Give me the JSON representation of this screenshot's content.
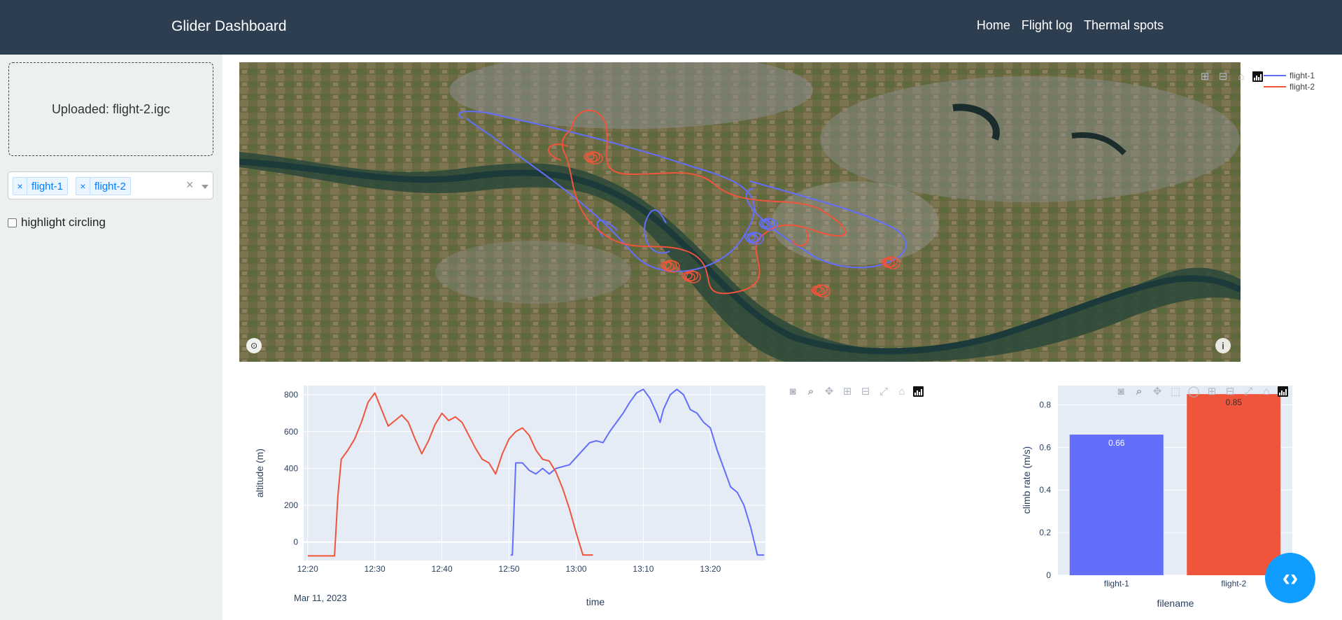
{
  "navbar": {
    "brand": "Glider Dashboard",
    "links": [
      "Home",
      "Flight log",
      "Thermal spots"
    ]
  },
  "sidebar": {
    "upload_text": "Uploaded: flight-2.igc",
    "selected_flights": [
      "flight-1",
      "flight-2"
    ],
    "clear_glyph": "×",
    "remove_glyph": "×",
    "highlight_label": "highlight circling",
    "highlight_checked": false
  },
  "map": {
    "legend": [
      "flight-1",
      "flight-2"
    ],
    "info_glyph": "i"
  },
  "colors": {
    "flight_1": "#636efa",
    "flight_2": "#ef553b",
    "navbar": "#2c3e50",
    "sidebar": "#ecf0f1",
    "plot_bg": "#e5ecf6"
  },
  "icons": [
    "camera-icon",
    "zoom-icon",
    "pan-icon",
    "zoom-in-icon",
    "zoom-out-icon",
    "autoscale-icon",
    "home-icon",
    "plotly-logo-icon",
    "select-box-icon",
    "lasso-icon"
  ],
  "altitude_chart": {
    "ylabel": "altitude (m)",
    "xlabel": "time",
    "x_date_label": "Mar 11, 2023",
    "x_ticks": [
      "12:20",
      "12:30",
      "12:40",
      "12:50",
      "13:00",
      "13:10",
      "13:20"
    ],
    "y_ticks": [
      "800",
      "600",
      "400",
      "200",
      "0"
    ]
  },
  "chart_data": [
    {
      "type": "line",
      "xlabel": "time",
      "ylabel": "altitude (m)",
      "x_range": [
        "2023-03-11 12:20",
        "2023-03-11 13:28"
      ],
      "ylim": [
        -100,
        850
      ],
      "series": [
        {
          "name": "flight-1",
          "x": [
            "12:50:15",
            "12:50:30",
            "12:51:00",
            "12:52:00",
            "12:53:00",
            "12:54:00",
            "12:55:00",
            "12:56:00",
            "12:57:00",
            "12:58:00",
            "12:59:00",
            "13:00:00",
            "13:01:00",
            "13:02:00",
            "13:03:00",
            "13:04:00",
            "13:05:00",
            "13:06:00",
            "13:07:00",
            "13:08:00",
            "13:09:00",
            "13:10:00",
            "13:11:00",
            "13:12:00",
            "13:12:30",
            "13:13:00",
            "13:14:00",
            "13:15:00",
            "13:16:00",
            "13:17:00",
            "13:18:00",
            "13:19:00",
            "13:20:00",
            "13:21:00",
            "13:22:00",
            "13:23:00",
            "13:24:00",
            "13:25:00",
            "13:26:00",
            "13:27:00",
            "13:28:00"
          ],
          "y": [
            -70,
            -70,
            430,
            430,
            390,
            370,
            400,
            370,
            400,
            410,
            420,
            460,
            500,
            540,
            550,
            540,
            600,
            650,
            700,
            760,
            810,
            830,
            780,
            700,
            650,
            720,
            800,
            830,
            800,
            720,
            700,
            650,
            620,
            500,
            400,
            300,
            270,
            200,
            80,
            -70,
            -70
          ]
        },
        {
          "name": "flight-2",
          "x": [
            "12:20:00",
            "12:24:00",
            "12:24:30",
            "12:25:00",
            "12:26:00",
            "12:27:00",
            "12:28:00",
            "12:29:00",
            "12:30:00",
            "12:31:00",
            "12:32:00",
            "12:33:00",
            "12:34:00",
            "12:35:00",
            "12:36:00",
            "12:37:00",
            "12:38:00",
            "12:39:00",
            "12:40:00",
            "12:41:00",
            "12:42:00",
            "12:43:00",
            "12:44:00",
            "12:45:00",
            "12:46:00",
            "12:47:00",
            "12:48:00",
            "12:49:00",
            "12:50:00",
            "12:51:00",
            "12:52:00",
            "12:53:00",
            "12:54:00",
            "12:55:00",
            "12:56:00",
            "12:57:00",
            "12:58:00",
            "12:59:00",
            "13:00:00",
            "13:01:00",
            "13:02:00",
            "13:02:30"
          ],
          "y": [
            -75,
            -75,
            250,
            450,
            500,
            560,
            650,
            760,
            810,
            720,
            630,
            660,
            690,
            650,
            560,
            480,
            550,
            640,
            700,
            660,
            680,
            650,
            580,
            510,
            450,
            430,
            370,
            480,
            560,
            600,
            620,
            580,
            500,
            450,
            440,
            380,
            290,
            180,
            50,
            -70,
            -70,
            -70
          ]
        }
      ]
    },
    {
      "type": "bar",
      "categories": [
        "flight-1",
        "flight-2"
      ],
      "values": [
        0.66,
        0.85
      ],
      "labels": [
        "0.66",
        "0.85"
      ],
      "xlabel": "filename",
      "ylabel": "climb rate (m/s)",
      "ylim": [
        0,
        0.89
      ],
      "y_ticks": [
        "0",
        "0.2",
        "0.4",
        "0.6",
        "0.8"
      ]
    }
  ]
}
